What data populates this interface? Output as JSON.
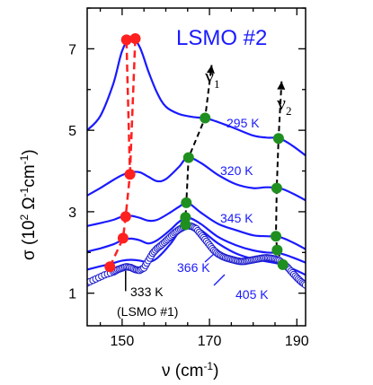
{
  "chart_data": {
    "type": "line",
    "title": "LSMO #2",
    "xlabel": "ν (cm",
    "xlabel_sup": "-1",
    "xlabel_tail": ")",
    "ylabel": "σ  (10",
    "ylabel_sup1": "2",
    "ylabel_mid": " Ω",
    "ylabel_sup2": "-1",
    "ylabel_unit": "cm",
    "ylabel_sup3": "-1",
    "ylabel_tail": ")",
    "xlim": [
      142,
      192
    ],
    "ylim": [
      0.2,
      8.0
    ],
    "xticks": [
      150,
      170,
      190
    ],
    "xtick_labels": [
      "150",
      "170",
      "190"
    ],
    "yticks": [
      1,
      3,
      5,
      7
    ],
    "ytick_labels": [
      "1",
      "3",
      "5",
      "7"
    ],
    "grid": false,
    "colors": {
      "curve": "#1a1aff",
      "red_marker": "#ff2020",
      "green_marker": "#1f8f1f",
      "axis": "#000000",
      "open_circle": "#1a1acc"
    },
    "series": [
      {
        "name": "295 K",
        "x": [
          142,
          145,
          148,
          150,
          152,
          154,
          156,
          158,
          160,
          163,
          166,
          170,
          175,
          180,
          183,
          186,
          189,
          192
        ],
        "y": [
          5.0,
          5.35,
          6.15,
          6.95,
          7.28,
          7.05,
          6.45,
          5.92,
          5.58,
          5.4,
          5.33,
          5.27,
          5.08,
          4.87,
          4.82,
          4.8,
          4.62,
          4.38
        ]
      },
      {
        "name": "320 K",
        "x": [
          142,
          145,
          148,
          150,
          152,
          154,
          156,
          158,
          160,
          163,
          165,
          168,
          172,
          176,
          180,
          183,
          186,
          189,
          192
        ],
        "y": [
          3.4,
          3.58,
          3.78,
          3.9,
          3.97,
          3.97,
          3.86,
          3.75,
          3.8,
          4.1,
          4.33,
          4.2,
          3.9,
          3.68,
          3.58,
          3.6,
          3.58,
          3.45,
          3.28
        ]
      },
      {
        "name": "345 K",
        "x": [
          142,
          145,
          148,
          150,
          152,
          154,
          156,
          158,
          161,
          163,
          165,
          168,
          172,
          176,
          180,
          183,
          186,
          189,
          192
        ],
        "y": [
          2.65,
          2.72,
          2.8,
          2.88,
          2.9,
          2.85,
          2.78,
          2.8,
          2.98,
          3.12,
          3.22,
          2.98,
          2.7,
          2.55,
          2.42,
          2.4,
          2.38,
          2.25,
          2.08
        ]
      },
      {
        "name": "366 K",
        "x": [
          142,
          145,
          148,
          150,
          152,
          154,
          156,
          158,
          161,
          163,
          165,
          168,
          172,
          176,
          180,
          183,
          186,
          189,
          192
        ],
        "y": [
          2.02,
          2.1,
          2.2,
          2.3,
          2.34,
          2.3,
          2.22,
          2.3,
          2.55,
          2.75,
          2.86,
          2.7,
          2.38,
          2.18,
          2.05,
          2.0,
          1.98,
          1.88,
          1.75
        ]
      },
      {
        "name": "405 K",
        "x": [
          142,
          145,
          148,
          150,
          152,
          154,
          156,
          158,
          161,
          163,
          165,
          168,
          172,
          176,
          180,
          183,
          186,
          189,
          192
        ],
        "y": [
          1.58,
          1.66,
          1.74,
          1.8,
          1.82,
          1.8,
          1.76,
          1.86,
          2.2,
          2.5,
          2.68,
          2.55,
          2.22,
          1.98,
          1.84,
          1.78,
          1.72,
          1.6,
          1.45
        ]
      }
    ],
    "series_labels": [
      "295 K",
      "320 K",
      "345 K",
      "366 K",
      "405 K"
    ],
    "reference": {
      "name": "333 K",
      "sub": "(LSMO #1)",
      "x": [
        142,
        144,
        146,
        148,
        149,
        150,
        151,
        152,
        153,
        154,
        155,
        156,
        157,
        158,
        159,
        160,
        161,
        162,
        163,
        164,
        165,
        166,
        167,
        168,
        169,
        170,
        171,
        172,
        173,
        174,
        175,
        176,
        177,
        178,
        179,
        180,
        181,
        182,
        183,
        184,
        185,
        186,
        187,
        188,
        189,
        190,
        191,
        192
      ],
      "y": [
        1.25,
        1.35,
        1.45,
        1.52,
        1.58,
        1.62,
        1.65,
        1.63,
        1.58,
        1.56,
        1.62,
        1.8,
        1.98,
        2.1,
        2.18,
        2.28,
        2.38,
        2.48,
        2.56,
        2.62,
        2.66,
        2.64,
        2.58,
        2.45,
        2.32,
        2.18,
        2.05,
        1.96,
        1.9,
        1.86,
        1.83,
        1.8,
        1.78,
        1.78,
        1.8,
        1.82,
        1.84,
        1.86,
        1.87,
        1.86,
        1.84,
        1.8,
        1.72,
        1.62,
        1.5,
        1.38,
        1.28,
        1.2
      ]
    },
    "markers": {
      "red": [
        {
          "x": 147.2,
          "y": 1.65
        },
        {
          "x": 150.2,
          "y": 2.35
        },
        {
          "x": 150.8,
          "y": 2.88
        },
        {
          "x": 151.8,
          "y": 3.92
        },
        {
          "x": 151.0,
          "y": 7.22
        },
        {
          "x": 153.0,
          "y": 7.25
        }
      ],
      "green_v1": [
        {
          "x": 164.5,
          "y": 2.68
        },
        {
          "x": 164.5,
          "y": 2.86
        },
        {
          "x": 164.7,
          "y": 3.22
        },
        {
          "x": 165.2,
          "y": 4.33
        },
        {
          "x": 169.0,
          "y": 5.3
        }
      ],
      "green_v2": [
        {
          "x": 186.8,
          "y": 1.7
        },
        {
          "x": 185.5,
          "y": 2.06
        },
        {
          "x": 185.2,
          "y": 2.4
        },
        {
          "x": 185.4,
          "y": 3.58
        },
        {
          "x": 185.8,
          "y": 4.8
        }
      ]
    },
    "mode_labels": {
      "v1": "ν",
      "v1_sub": "1",
      "v2": "ν",
      "v2_sub": "2"
    }
  }
}
